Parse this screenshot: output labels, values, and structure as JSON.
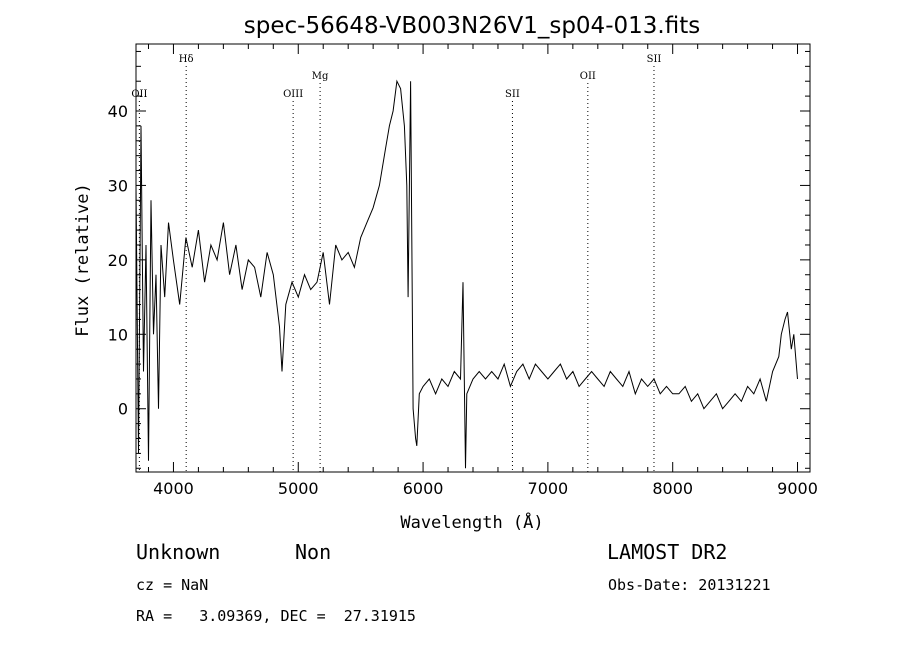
{
  "chart_data": {
    "type": "line",
    "title": "spec-56648-VB003N26V1_sp04-013.fits",
    "xlabel": "Wavelength (Å)",
    "ylabel": "Flux (relative)",
    "xlim": [
      3700,
      9100
    ],
    "ylim": [
      -8.5,
      49
    ],
    "x_ticks": [
      4000,
      5000,
      6000,
      7000,
      8000,
      9000
    ],
    "y_ticks": [
      0,
      10,
      20,
      30,
      40
    ],
    "grid": false,
    "series": [
      {
        "x": [
          3700,
          3720,
          3740,
          3760,
          3780,
          3800,
          3820,
          3840,
          3860,
          3880,
          3900,
          3930,
          3960,
          4000,
          4050,
          4100,
          4150,
          4200,
          4250,
          4300,
          4350,
          4400,
          4450,
          4500,
          4550,
          4600,
          4650,
          4700,
          4750,
          4800,
          4850,
          4870,
          4900,
          4950,
          5000,
          5050,
          5100,
          5150,
          5200,
          5250,
          5300,
          5350,
          5400,
          5450,
          5500,
          5550,
          5600,
          5650,
          5700,
          5730,
          5760,
          5790,
          5820,
          5850,
          5870,
          5880,
          5900,
          5920,
          5940,
          5950,
          5970,
          6000,
          6050,
          6100,
          6150,
          6200,
          6250,
          6300,
          6320,
          6340,
          6350,
          6400,
          6450,
          6500,
          6550,
          6600,
          6650,
          6700,
          6750,
          6800,
          6850,
          6900,
          6950,
          7000,
          7050,
          7100,
          7150,
          7200,
          7250,
          7300,
          7350,
          7400,
          7450,
          7500,
          7550,
          7600,
          7650,
          7700,
          7750,
          7800,
          7850,
          7900,
          7950,
          8000,
          8050,
          8100,
          8150,
          8200,
          8250,
          8300,
          8350,
          8400,
          8450,
          8500,
          8550,
          8600,
          8650,
          8700,
          8750,
          8800,
          8850,
          8870,
          8900,
          8920,
          8950,
          8970,
          9000
        ],
        "y": [
          30,
          -6,
          38,
          5,
          22,
          -7,
          28,
          10,
          18,
          0,
          22,
          15,
          25,
          20,
          14,
          23,
          19,
          24,
          17,
          22,
          20,
          25,
          18,
          22,
          16,
          20,
          19,
          15,
          21,
          18,
          11,
          5,
          14,
          17,
          15,
          18,
          16,
          17,
          21,
          14,
          22,
          20,
          21,
          19,
          23,
          25,
          27,
          30,
          35,
          38,
          40,
          44,
          43,
          38,
          30,
          15,
          44,
          0,
          -4,
          -5,
          2,
          3,
          4,
          2,
          4,
          3,
          5,
          4,
          17,
          -8,
          2,
          4,
          5,
          4,
          5,
          4,
          6,
          3,
          5,
          6,
          4,
          6,
          5,
          4,
          5,
          6,
          4,
          5,
          3,
          4,
          5,
          4,
          3,
          5,
          4,
          3,
          5,
          2,
          4,
          3,
          4,
          2,
          3,
          2,
          2,
          3,
          1,
          2,
          0,
          1,
          2,
          0,
          1,
          2,
          1,
          3,
          2,
          4,
          1,
          5,
          7,
          10,
          12,
          13,
          8,
          10,
          4
        ]
      }
    ],
    "line_markers": [
      {
        "label": "OII",
        "x": 3727,
        "row": 3
      },
      {
        "label": "Hδ",
        "x": 4102,
        "row": 1
      },
      {
        "label": "OIII",
        "x": 4959,
        "row": 3
      },
      {
        "label": "Mg",
        "x": 5175,
        "row": 2
      },
      {
        "label": "SII",
        "x": 6716,
        "row": 3
      },
      {
        "label": "OII",
        "x": 7320,
        "row": 2
      },
      {
        "label": "SII",
        "x": 7850,
        "row": 1
      }
    ]
  },
  "info": {
    "class_label": "Unknown",
    "subclass_label": "Non",
    "survey": "LAMOST DR2",
    "cz": "cz = NaN",
    "obs_date": "Obs-Date: 20131221",
    "radec": "RA =   3.09369, DEC =  27.31915"
  }
}
